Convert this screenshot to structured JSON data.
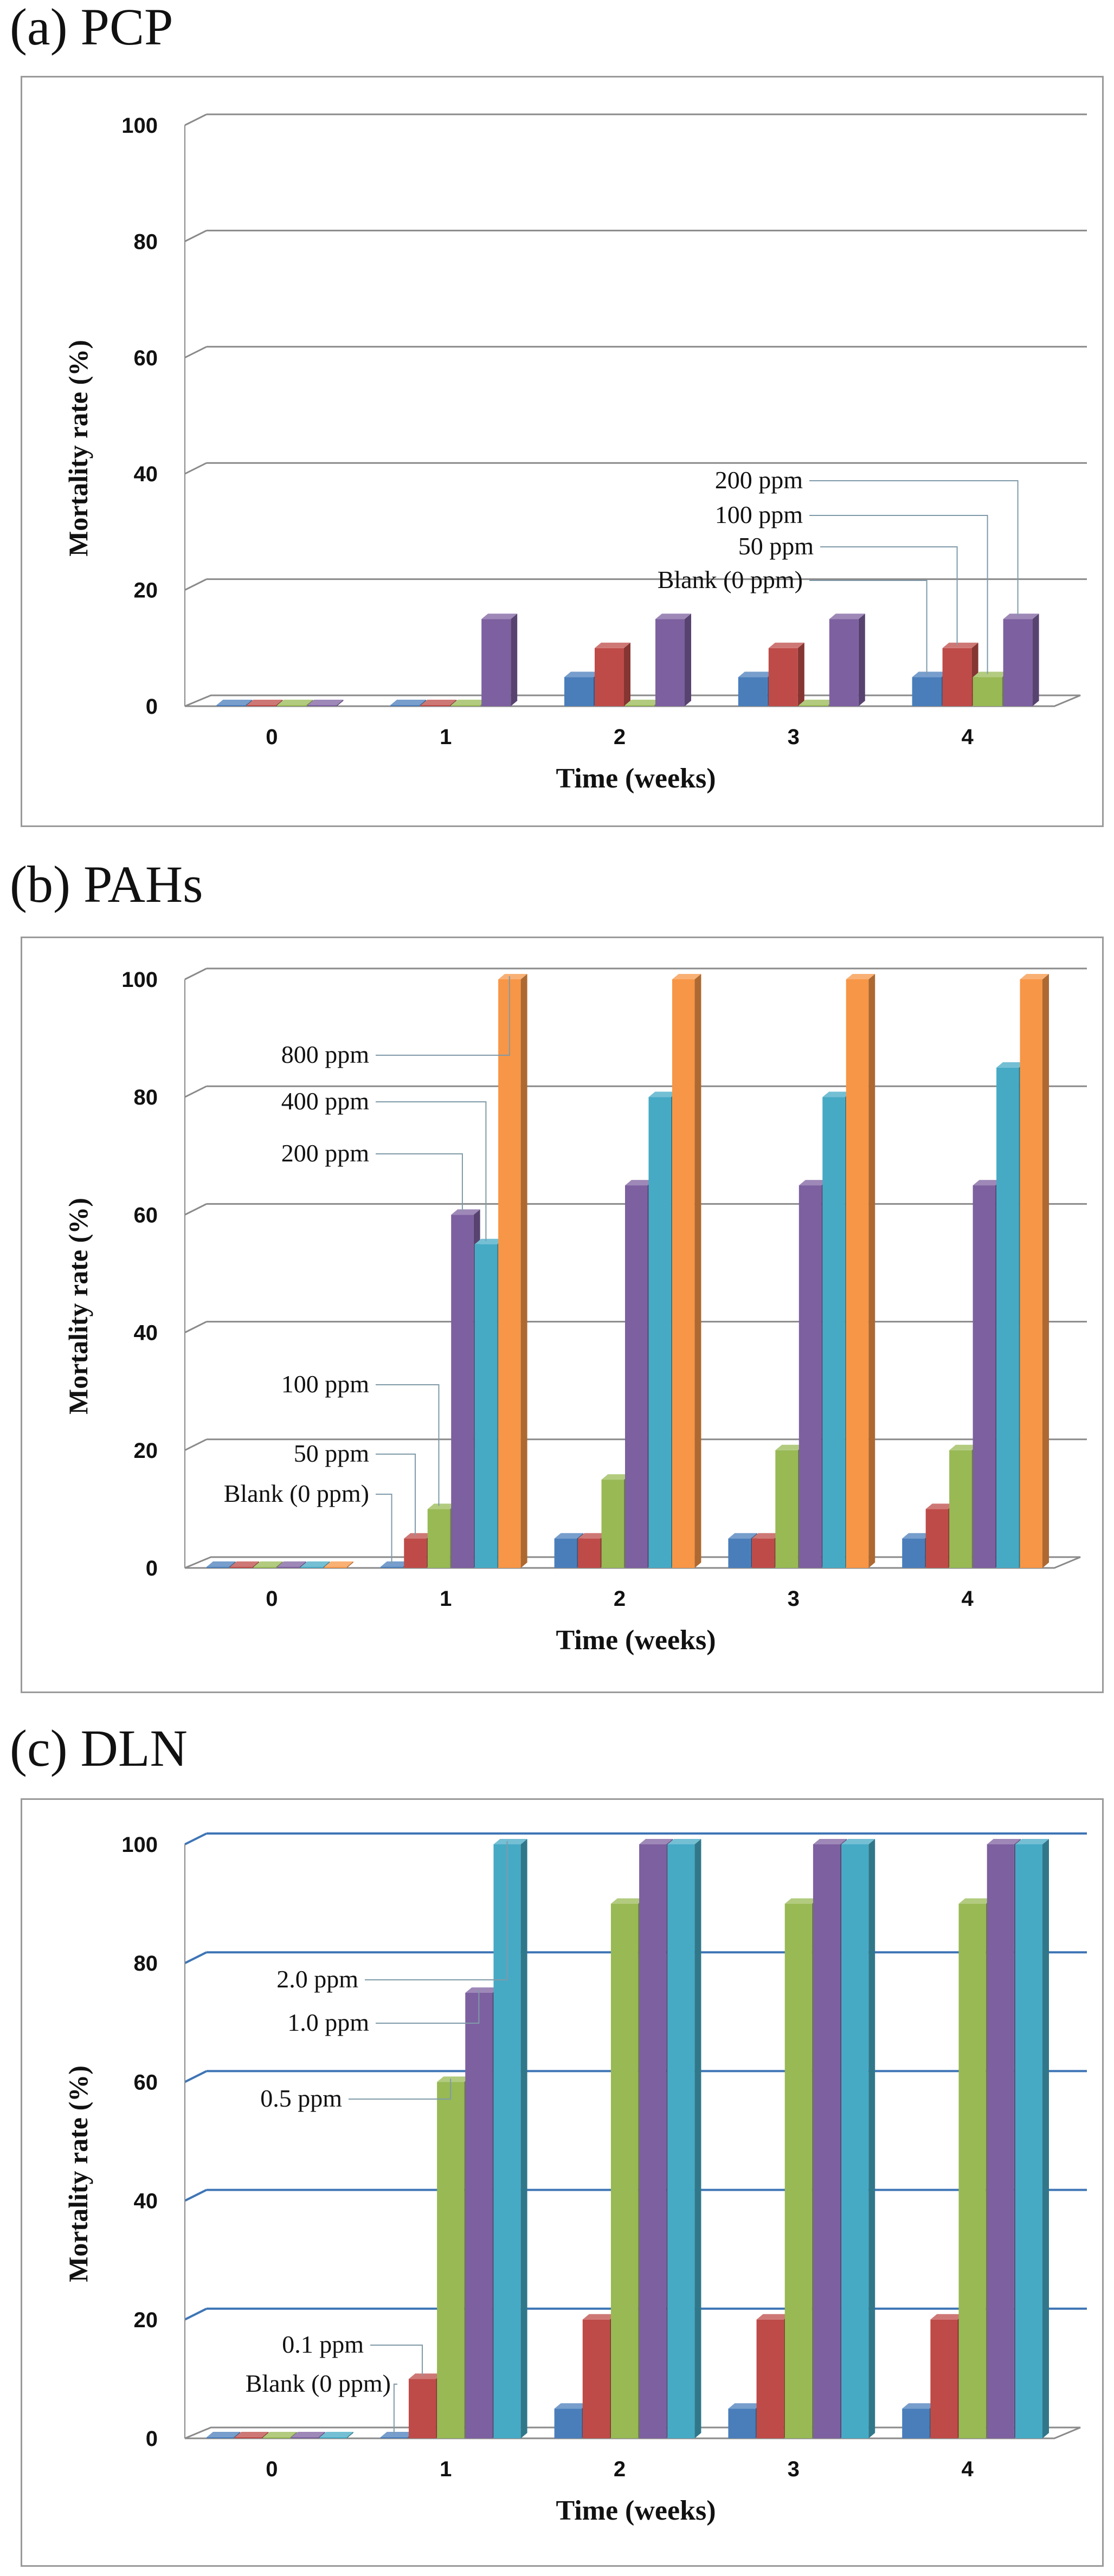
{
  "panels": [
    {
      "label": "(a) PCP"
    },
    {
      "label": "(b) PAHs"
    },
    {
      "label": "(c) DLN"
    }
  ],
  "chart_data": [
    {
      "type": "bar",
      "title": "(a) PCP",
      "xlabel": "Time (weeks)",
      "ylabel": "Mortality rate (%)",
      "categories": [
        "0",
        "1",
        "2",
        "3",
        "4"
      ],
      "ylim": [
        0,
        100
      ],
      "yticks": [
        "0",
        "20",
        "40",
        "60",
        "80",
        "100"
      ],
      "grid": true,
      "series": [
        {
          "name": "Blank (0 ppm)",
          "color": "#4a7ebb",
          "values": [
            0,
            0,
            5,
            5,
            5
          ]
        },
        {
          "name": "50 ppm",
          "color": "#be4b48",
          "values": [
            0,
            0,
            10,
            10,
            10
          ]
        },
        {
          "name": "100 ppm",
          "color": "#98b954",
          "values": [
            0,
            0,
            0,
            0,
            5
          ]
        },
        {
          "name": "200 ppm",
          "color": "#7d60a0",
          "values": [
            0,
            15,
            15,
            15,
            15
          ]
        }
      ]
    },
    {
      "type": "bar",
      "title": "(b) PAHs",
      "xlabel": "Time (weeks)",
      "ylabel": "Mortality rate (%)",
      "categories": [
        "0",
        "1",
        "2",
        "3",
        "4"
      ],
      "ylim": [
        0,
        100
      ],
      "yticks": [
        "0",
        "20",
        "40",
        "60",
        "80",
        "100"
      ],
      "grid": true,
      "series": [
        {
          "name": "Blank (0 ppm)",
          "color": "#4a7ebb",
          "values": [
            0,
            0,
            5,
            5,
            5
          ]
        },
        {
          "name": "50 ppm",
          "color": "#be4b48",
          "values": [
            0,
            5,
            5,
            5,
            10
          ]
        },
        {
          "name": "100 ppm",
          "color": "#98b954",
          "values": [
            0,
            10,
            15,
            20,
            20
          ]
        },
        {
          "name": "200 ppm",
          "color": "#7d60a0",
          "values": [
            0,
            60,
            65,
            65,
            65
          ]
        },
        {
          "name": "400 ppm",
          "color": "#46aac5",
          "values": [
            0,
            55,
            80,
            80,
            85
          ]
        },
        {
          "name": "800 ppm",
          "color": "#f79646",
          "values": [
            0,
            100,
            100,
            100,
            100
          ]
        }
      ]
    },
    {
      "type": "bar",
      "title": "(c) DLN",
      "xlabel": "Time (weeks)",
      "ylabel": "Mortality rate (%)",
      "categories": [
        "0",
        "1",
        "2",
        "3",
        "4"
      ],
      "ylim": [
        0,
        100
      ],
      "yticks": [
        "0",
        "20",
        "40",
        "60",
        "80",
        "100"
      ],
      "grid": true,
      "series": [
        {
          "name": "Blank (0 ppm)",
          "color": "#4a7ebb",
          "values": [
            0,
            0,
            5,
            5,
            5
          ]
        },
        {
          "name": "0.1 ppm",
          "color": "#be4b48",
          "values": [
            0,
            10,
            20,
            20,
            20
          ]
        },
        {
          "name": "0.5 ppm",
          "color": "#98b954",
          "values": [
            0,
            60,
            90,
            90,
            90
          ]
        },
        {
          "name": "1.0 ppm",
          "color": "#7d60a0",
          "values": [
            0,
            75,
            100,
            100,
            100
          ]
        },
        {
          "name": "2.0 ppm",
          "color": "#46aac5",
          "values": [
            0,
            100,
            100,
            100,
            100
          ]
        }
      ]
    }
  ]
}
